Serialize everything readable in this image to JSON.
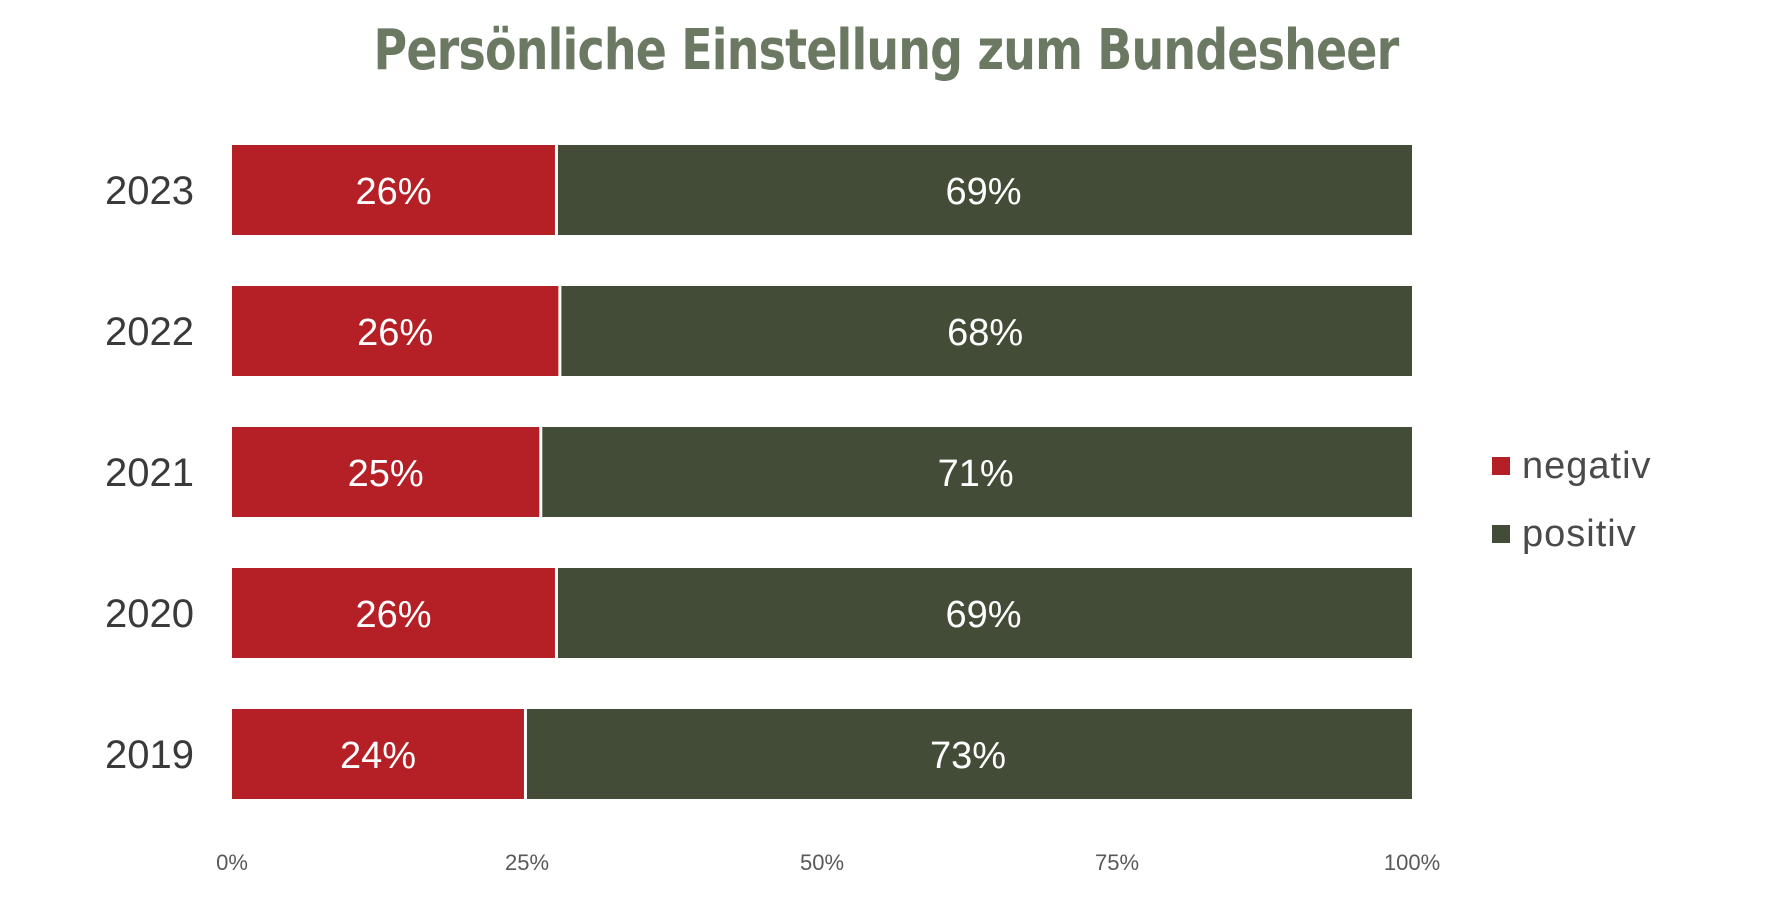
{
  "chart_data": {
    "type": "bar",
    "orientation": "horizontal",
    "stacked": true,
    "title": "Persönliche Einstellung zum Bundesheer",
    "categories": [
      "2023",
      "2022",
      "2021",
      "2020",
      "2019"
    ],
    "series": [
      {
        "name": "negativ",
        "color": "#b42025",
        "values": [
          26,
          26,
          25,
          26,
          24
        ],
        "labels": [
          "26%",
          "26%",
          "25%",
          "26%",
          "24%"
        ]
      },
      {
        "name": "positiv",
        "color": "#434c36",
        "values": [
          69,
          68,
          71,
          69,
          73
        ],
        "labels": [
          "69%",
          "68%",
          "71%",
          "69%",
          "73%"
        ]
      }
    ],
    "x_ticks": [
      "0%",
      "25%",
      "50%",
      "75%",
      "100%"
    ],
    "xlim": [
      0,
      100
    ],
    "normalized_to_100": true,
    "grid": false,
    "legend_position": "right"
  }
}
